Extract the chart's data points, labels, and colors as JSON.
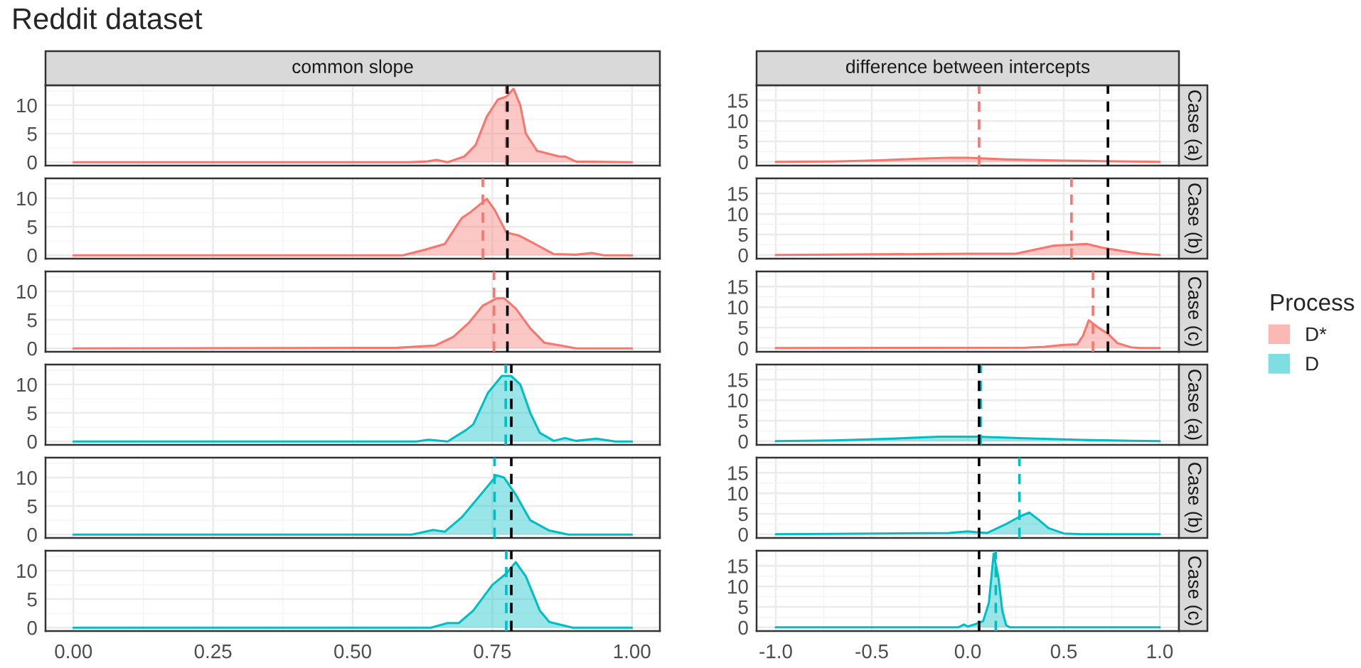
{
  "chart_data": [
    {
      "type": "area",
      "title": "Reddit dataset",
      "subtitle": "common slope",
      "legend": "right",
      "legend_title": "Process",
      "tick_labels": "y",
      "grid": true,
      "x": [
        0,
        0.6,
        0.63,
        0.65,
        0.67,
        0.7,
        0.72,
        0.74,
        0.76,
        0.775,
        0.788,
        0.8,
        0.81,
        0.83,
        0.85,
        0.87,
        0.88,
        0.9,
        1.0
      ],
      "series": [
        {
          "name": "D*",
          "color": "#f8766d",
          "values": [
            0,
            0,
            0.1,
            0.4,
            0,
            1,
            3,
            8,
            11,
            11.5,
            12.9,
            10,
            5,
            2,
            1.5,
            1,
            1,
            0.1,
            0
          ]
        }
      ],
      "xlim": [
        -0.05,
        1.05
      ],
      "ylim": [
        -0.6,
        13.5
      ],
      "yticks": [
        0,
        5,
        10
      ],
      "xticks": [
        {
          "value": 0,
          "label": null
        },
        {
          "value": 0.25,
          "label": null
        },
        {
          "value": 0.5,
          "label": null
        },
        {
          "value": 0.75,
          "label": null
        },
        {
          "value": 1,
          "label": null
        }
      ],
      "ref_lines": [
        {
          "axis": "x",
          "value": 0.775,
          "color": "#f8766d",
          "line_style": "dashed"
        },
        {
          "axis": "x",
          "value": 0.777,
          "color": "#000000",
          "line_style": "dashed"
        }
      ]
    },
    {
      "type": "area",
      "subtitle": "difference between intercepts",
      "annotations": [
        "Case (a)"
      ],
      "tick_labels": "y",
      "grid": true,
      "x": [
        -1,
        -0.7,
        -0.45,
        -0.25,
        -0.1,
        0,
        0.2,
        0.5,
        0.7,
        0.85,
        1
      ],
      "series": [
        {
          "color": "#f8766d",
          "values": [
            0,
            0.1,
            0.4,
            0.8,
            1,
            1,
            0.6,
            0.3,
            0.2,
            0.1,
            0
          ]
        }
      ],
      "xlim": [
        -1.1,
        1.1
      ],
      "ylim": [
        -0.9,
        18.7
      ],
      "yticks": [
        0,
        5,
        10,
        15
      ],
      "xticks": [
        {
          "value": -1,
          "label": null
        },
        {
          "value": -0.5,
          "label": null
        },
        {
          "value": 0,
          "label": null
        },
        {
          "value": 0.5,
          "label": null
        },
        {
          "value": 1,
          "label": null
        }
      ],
      "ref_lines": [
        {
          "axis": "x",
          "value": 0.059,
          "color": "#f8766d",
          "line_style": "dashed"
        },
        {
          "axis": "x",
          "value": 0.73,
          "color": "#000000",
          "line_style": "dashed"
        }
      ]
    },
    {
      "type": "area",
      "tick_labels": "y",
      "grid": true,
      "x": [
        0,
        0.59,
        0.63,
        0.665,
        0.695,
        0.71,
        0.74,
        0.754,
        0.775,
        0.797,
        0.826,
        0.86,
        0.9,
        0.928,
        0.95,
        1
      ],
      "series": [
        {
          "color": "#f8766d",
          "values": [
            0,
            0,
            1,
            2,
            6.5,
            7.5,
            9.9,
            8,
            4,
            3.5,
            2,
            0.2,
            0.1,
            0.4,
            0,
            0
          ]
        }
      ],
      "xlim": [
        -0.05,
        1.05
      ],
      "ylim": [
        -0.6,
        13.5
      ],
      "yticks": [
        0,
        5,
        10
      ],
      "xticks": [
        {
          "value": 0,
          "label": null
        },
        {
          "value": 0.25,
          "label": null
        },
        {
          "value": 0.5,
          "label": null
        },
        {
          "value": 0.75,
          "label": null
        },
        {
          "value": 1,
          "label": null
        }
      ],
      "ref_lines": [
        {
          "axis": "x",
          "value": 0.733,
          "color": "#f8766d",
          "line_style": "dashed"
        },
        {
          "axis": "x",
          "value": 0.777,
          "color": "#000000",
          "line_style": "dashed"
        }
      ]
    },
    {
      "type": "area",
      "annotations": [
        "Case (b)"
      ],
      "tick_labels": "y",
      "grid": true,
      "x": [
        -1,
        0,
        0.25,
        0.35,
        0.45,
        0.55,
        0.62,
        0.7,
        0.8,
        0.9,
        1
      ],
      "series": [
        {
          "color": "#f8766d",
          "values": [
            0,
            0.3,
            0.3,
            1.3,
            2.3,
            2.5,
            2.7,
            1.8,
            1,
            0.3,
            0
          ]
        }
      ],
      "xlim": [
        -1.1,
        1.1
      ],
      "ylim": [
        -0.9,
        18.7
      ],
      "yticks": [
        0,
        5,
        10,
        15
      ],
      "xticks": [
        {
          "value": -1,
          "label": null
        },
        {
          "value": -0.5,
          "label": null
        },
        {
          "value": 0,
          "label": null
        },
        {
          "value": 0.5,
          "label": null
        },
        {
          "value": 1,
          "label": null
        }
      ],
      "ref_lines": [
        {
          "axis": "x",
          "value": 0.54,
          "color": "#f8766d",
          "line_style": "dashed"
        },
        {
          "axis": "x",
          "value": 0.73,
          "color": "#000000",
          "line_style": "dashed"
        }
      ]
    },
    {
      "type": "area",
      "tick_labels": "y",
      "grid": true,
      "x": [
        0,
        0.58,
        0.648,
        0.68,
        0.708,
        0.733,
        0.758,
        0.771,
        0.792,
        0.818,
        0.843,
        0.873,
        0.9,
        1
      ],
      "series": [
        {
          "color": "#f8766d",
          "values": [
            0,
            0.1,
            0.5,
            2,
            4.5,
            7.5,
            8.8,
            8.8,
            7,
            3.5,
            1,
            0.5,
            0,
            0
          ]
        }
      ],
      "xlim": [
        -0.05,
        1.05
      ],
      "ylim": [
        -0.6,
        13.5
      ],
      "yticks": [
        0,
        5,
        10
      ],
      "xticks": [
        {
          "value": 0,
          "label": null
        },
        {
          "value": 0.25,
          "label": null
        },
        {
          "value": 0.5,
          "label": null
        },
        {
          "value": 0.75,
          "label": null
        },
        {
          "value": 1,
          "label": null
        }
      ],
      "ref_lines": [
        {
          "axis": "x",
          "value": 0.753,
          "color": "#f8766d",
          "line_style": "dashed"
        },
        {
          "axis": "x",
          "value": 0.777,
          "color": "#000000",
          "line_style": "dashed"
        }
      ]
    },
    {
      "type": "area",
      "annotations": [
        "Case (c)"
      ],
      "tick_labels": "y",
      "grid": true,
      "x": [
        -1,
        0.3,
        0.4,
        0.5,
        0.57,
        0.6,
        0.63,
        0.68,
        0.73,
        0.78,
        0.85,
        0.9,
        1
      ],
      "series": [
        {
          "color": "#f8766d",
          "values": [
            0,
            0.1,
            0.3,
            0.8,
            0.9,
            3,
            6.8,
            5,
            3.5,
            1.2,
            0.2,
            0,
            0
          ]
        }
      ],
      "xlim": [
        -1.1,
        1.1
      ],
      "ylim": [
        -0.9,
        18.7
      ],
      "yticks": [
        0,
        5,
        10,
        15
      ],
      "xticks": [
        {
          "value": -1,
          "label": null
        },
        {
          "value": -0.5,
          "label": null
        },
        {
          "value": 0,
          "label": null
        },
        {
          "value": 0.5,
          "label": null
        },
        {
          "value": 1,
          "label": null
        }
      ],
      "ref_lines": [
        {
          "axis": "x",
          "value": 0.652,
          "color": "#f8766d",
          "line_style": "dashed"
        },
        {
          "axis": "x",
          "value": 0.73,
          "color": "#000000",
          "line_style": "dashed"
        }
      ]
    },
    {
      "type": "area",
      "tick_labels": "y",
      "grid": true,
      "x": [
        0,
        0.614,
        0.636,
        0.67,
        0.703,
        0.716,
        0.742,
        0.767,
        0.784,
        0.8,
        0.818,
        0.835,
        0.86,
        0.88,
        0.9,
        0.936,
        0.97,
        1
      ],
      "series": [
        {
          "name": "D",
          "color": "#00bfc4",
          "values": [
            0,
            0,
            0.3,
            0,
            2,
            3,
            8.5,
            11.5,
            11.5,
            10,
            5,
            1.5,
            0.1,
            0.6,
            0.1,
            0.5,
            0,
            0
          ]
        }
      ],
      "xlim": [
        -0.05,
        1.05
      ],
      "ylim": [
        -0.6,
        13.5
      ],
      "yticks": [
        0,
        5,
        10
      ],
      "xticks": [
        {
          "value": 0,
          "label": null
        },
        {
          "value": 0.25,
          "label": null
        },
        {
          "value": 0.5,
          "label": null
        },
        {
          "value": 0.75,
          "label": null
        },
        {
          "value": 1,
          "label": null
        }
      ],
      "ref_lines": [
        {
          "axis": "x",
          "value": 0.774,
          "color": "#00bfc4",
          "line_style": "dashed"
        },
        {
          "axis": "x",
          "value": 0.784,
          "color": "#000000",
          "line_style": "dashed"
        }
      ]
    },
    {
      "type": "area",
      "annotations": [
        "Case (a)"
      ],
      "tick_labels": "y",
      "grid": true,
      "x": [
        -1,
        -0.7,
        -0.4,
        -0.15,
        0.05,
        0.3,
        0.6,
        0.85,
        1
      ],
      "series": [
        {
          "color": "#00bfc4",
          "values": [
            0,
            0.2,
            0.6,
            1.1,
            1.1,
            0.7,
            0.3,
            0.1,
            0
          ]
        }
      ],
      "xlim": [
        -1.1,
        1.1
      ],
      "ylim": [
        -0.9,
        18.7
      ],
      "yticks": [
        0,
        5,
        10,
        15
      ],
      "xticks": [
        {
          "value": -1,
          "label": null
        },
        {
          "value": -0.5,
          "label": null
        },
        {
          "value": 0,
          "label": null
        },
        {
          "value": 0.5,
          "label": null
        },
        {
          "value": 1,
          "label": null
        }
      ],
      "ref_lines": [
        {
          "axis": "x",
          "value": 0.067,
          "color": "#00bfc4",
          "line_style": "dashed"
        },
        {
          "axis": "x",
          "value": 0.059,
          "color": "#000000",
          "line_style": "dashed"
        }
      ]
    },
    {
      "type": "area",
      "tick_labels": "y",
      "grid": true,
      "x": [
        0,
        0.606,
        0.644,
        0.665,
        0.695,
        0.725,
        0.758,
        0.771,
        0.792,
        0.818,
        0.852,
        0.886,
        1
      ],
      "series": [
        {
          "color": "#00bfc4",
          "values": [
            0,
            0,
            0.8,
            0.5,
            3,
            6.5,
            10.4,
            10,
            7,
            2.5,
            0.7,
            0,
            0
          ]
        }
      ],
      "xlim": [
        -0.05,
        1.05
      ],
      "ylim": [
        -0.6,
        13.5
      ],
      "yticks": [
        0,
        5,
        10
      ],
      "xticks": [
        {
          "value": 0,
          "label": null
        },
        {
          "value": 0.25,
          "label": null
        },
        {
          "value": 0.5,
          "label": null
        },
        {
          "value": 0.75,
          "label": null
        },
        {
          "value": 1,
          "label": null
        }
      ],
      "ref_lines": [
        {
          "axis": "x",
          "value": 0.754,
          "color": "#00bfc4",
          "line_style": "dashed"
        },
        {
          "axis": "x",
          "value": 0.784,
          "color": "#000000",
          "line_style": "dashed"
        }
      ]
    },
    {
      "type": "area",
      "annotations": [
        "Case (b)"
      ],
      "tick_labels": "y",
      "grid": true,
      "x": [
        -1,
        -0.1,
        0,
        0.05,
        0.1,
        0.2,
        0.27,
        0.32,
        0.37,
        0.42,
        0.5,
        0.6,
        1
      ],
      "series": [
        {
          "color": "#00bfc4",
          "values": [
            0,
            0.3,
            0.7,
            0.5,
            0.3,
            2.5,
            4.3,
            5.3,
            3.5,
            1.5,
            0.2,
            0,
            0
          ]
        }
      ],
      "xlim": [
        -1.1,
        1.1
      ],
      "ylim": [
        -0.9,
        18.7
      ],
      "yticks": [
        0,
        5,
        10,
        15
      ],
      "xticks": [
        {
          "value": -1,
          "label": null
        },
        {
          "value": -0.5,
          "label": null
        },
        {
          "value": 0,
          "label": null
        },
        {
          "value": 0.5,
          "label": null
        },
        {
          "value": 1,
          "label": null
        }
      ],
      "ref_lines": [
        {
          "axis": "x",
          "value": 0.269,
          "color": "#00bfc4",
          "line_style": "dashed"
        },
        {
          "axis": "x",
          "value": 0.059,
          "color": "#000000",
          "line_style": "dashed"
        }
      ]
    },
    {
      "type": "area",
      "grid": true,
      "x": [
        0,
        0.64,
        0.67,
        0.69,
        0.716,
        0.75,
        0.775,
        0.792,
        0.81,
        0.835,
        0.852,
        0.894,
        1
      ],
      "series": [
        {
          "color": "#00bfc4",
          "values": [
            0,
            0,
            0.8,
            0.8,
            3,
            7.5,
            9.5,
            11.5,
            9,
            3,
            1,
            0,
            0
          ]
        }
      ],
      "xlim": [
        -0.05,
        1.05
      ],
      "ylim": [
        -0.6,
        13.5
      ],
      "yticks": [
        0,
        5,
        10
      ],
      "xticks": [
        {
          "value": 0,
          "label": "0.00"
        },
        {
          "value": 0.25,
          "label": "0.25"
        },
        {
          "value": 0.5,
          "label": "0.50"
        },
        {
          "value": 0.75,
          "label": "0.75"
        },
        {
          "value": 1,
          "label": "1.00"
        }
      ],
      "ref_lines": [
        {
          "axis": "x",
          "value": 0.775,
          "color": "#00bfc4",
          "line_style": "dashed"
        },
        {
          "axis": "x",
          "value": 0.784,
          "color": "#000000",
          "line_style": "dashed"
        }
      ]
    },
    {
      "type": "area",
      "annotations": [
        "Case (c)"
      ],
      "grid": true,
      "x": [
        -1,
        -0.05,
        -0.02,
        0,
        0.04,
        0.08,
        0.11,
        0.135,
        0.16,
        0.18,
        0.2,
        0.22,
        1
      ],
      "series": [
        {
          "color": "#00bfc4",
          "values": [
            0,
            0,
            0.7,
            0.2,
            0.8,
            1.5,
            6,
            18,
            12,
            4,
            0.5,
            0,
            0
          ]
        }
      ],
      "xlim": [
        -1.1,
        1.1
      ],
      "ylim": [
        -0.9,
        18.7
      ],
      "yticks": [
        0,
        5,
        10,
        15
      ],
      "xticks": [
        {
          "value": -1,
          "label": "-1.0"
        },
        {
          "value": -0.5,
          "label": "-0.5"
        },
        {
          "value": 0,
          "label": "0.0"
        },
        {
          "value": 0.5,
          "label": "0.5"
        },
        {
          "value": 1,
          "label": "1.0"
        }
      ],
      "ref_lines": [
        {
          "axis": "x",
          "value": 0.146,
          "color": "#00bfc4",
          "line_style": "dashed"
        },
        {
          "axis": "x",
          "value": 0.059,
          "color": "#000000",
          "line_style": "dashed"
        }
      ]
    }
  ]
}
